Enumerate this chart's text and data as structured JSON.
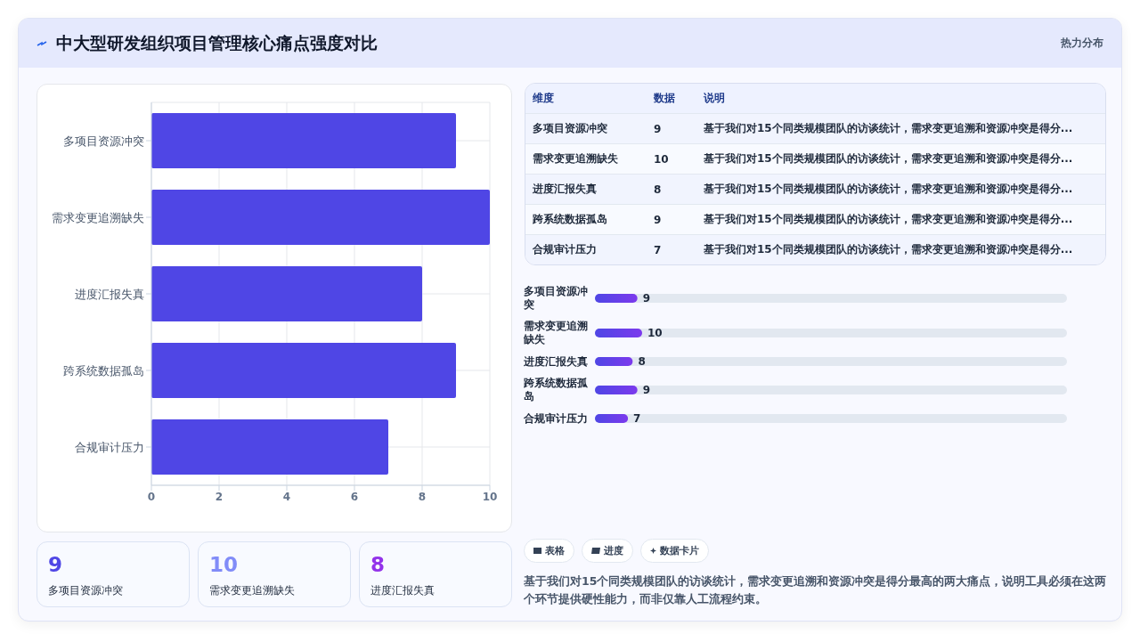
{
  "chart_data": [
    {
      "type": "bar",
      "orientation": "horizontal",
      "title": "中大型研发组织项目管理核心痛点强度对比",
      "annotations": [
        "热力分布"
      ],
      "categories": [
        "多项目资源冲突",
        "需求变更追溯缺失",
        "进度汇报失真",
        "跨系统数据孤岛",
        "合规审计压力"
      ],
      "values": [
        9,
        10,
        8,
        9,
        7
      ],
      "color": "#4f46e5",
      "xlim": [
        0,
        10
      ],
      "xticks": [
        0,
        2,
        4,
        6,
        8,
        10
      ],
      "grid": true
    },
    {
      "type": "other",
      "annotations": [
        "维度",
        "数据",
        "说明",
        "基于我们对15个同类规模团队的访谈统计，需求变更追溯和资源冲突是得分...",
        "基于我们对15个同类规模团队的访谈统计，需求变更追溯和资源冲突是得分...",
        "基于我们对15个同类规模团队的访谈统计，需求变更追溯和资源冲突是得分...",
        "基于我们对15个同类规模团队的访谈统计，需求变更追溯和资源冲突是得分...",
        "基于我们对15个同类规模团队的访谈统计，需求变更追溯和资源冲突是得分..."
      ],
      "categories": [
        "多项目资源冲突",
        "需求变更追溯缺失",
        "进度汇报失真",
        "跨系统数据孤岛",
        "合规审计压力"
      ],
      "values": [
        9,
        10,
        8,
        9,
        7
      ],
      "data_labels": true
    },
    {
      "type": "bar",
      "orientation": "horizontal",
      "categories": [
        "多项目资源冲突",
        "需求变更追溯缺失",
        "进度汇报失真",
        "跨系统数据孤岛",
        "合规审计压力"
      ],
      "values": [
        9,
        10,
        8,
        9,
        7
      ],
      "color": "#7c3aed",
      "tick_labels": "y",
      "data_labels": true
    },
    {
      "type": "other",
      "categories": [
        "多项目资源冲突",
        "需求变更追溯缺失",
        "进度汇报失真"
      ],
      "values": [
        9,
        10,
        8
      ],
      "data_labels": true,
      "annotations": [
        "表格",
        "进度",
        "数据卡片",
        "基于我们对15个同类规模团队的访谈统计，需求变更追溯和资源冲突是得分最高的两大痛点，说明工具必须在这两个环节提供硬性能力，而非仅靠人工流程约束。"
      ]
    }
  ]
}
